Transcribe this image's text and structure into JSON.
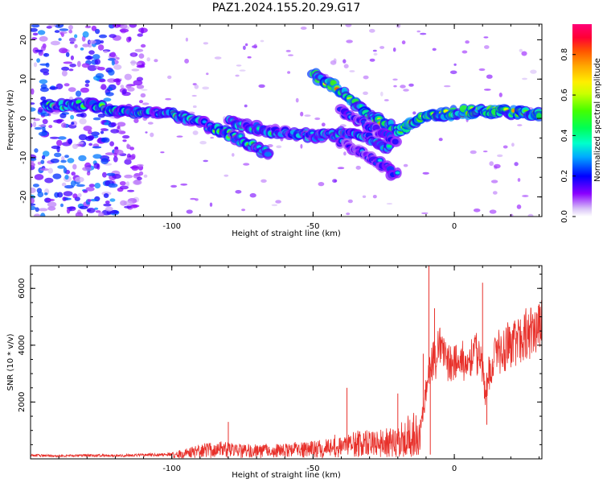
{
  "figure": {
    "title": "PAZ1.2024.155.20.29.G17"
  },
  "chart_data": [
    {
      "type": "heatmap",
      "title": "PAZ1.2024.155.20.29.G17",
      "xlabel": "Height of straight line (km)",
      "ylabel": "Frequency (Hz)",
      "xlim": [
        -150,
        31
      ],
      "ylim": [
        -25,
        24
      ],
      "x_ticks": [
        "-100",
        "-50",
        "0"
      ],
      "y_ticks": [
        "-20",
        "-10",
        "0",
        "10",
        "20"
      ],
      "colorbar": {
        "label": "Normalized spectral amplitude",
        "range": [
          0,
          0.95
        ],
        "ticks": [
          "0.0",
          "0.2",
          "0.4",
          "0.6",
          "0.8"
        ],
        "colormap": "gist_rainbow_r"
      },
      "ridges": [
        {
          "points": [
            [
              -145,
              3
            ],
            [
              -130,
              3.5
            ],
            [
              -115,
              1.5
            ],
            [
              -100,
              1
            ],
            [
              -90,
              -1
            ],
            [
              -80,
              -4
            ],
            [
              -70,
              -7.5
            ],
            [
              -65,
              -9
            ]
          ],
          "amplitude": 0.55
        },
        {
          "points": [
            [
              -80,
              -1
            ],
            [
              -70,
              -2.5
            ],
            [
              -60,
              -3.5
            ],
            [
              -50,
              -4.5
            ],
            [
              -40,
              -4
            ],
            [
              -32,
              -4.5
            ],
            [
              -27,
              -6
            ],
            [
              -22,
              -8
            ]
          ],
          "amplitude": 0.5
        },
        {
          "points": [
            [
              -50,
              11
            ],
            [
              -42,
              8
            ],
            [
              -35,
              4
            ],
            [
              -30,
              1
            ],
            [
              -25,
              -1
            ],
            [
              -20,
              -3
            ],
            [
              -15,
              -1
            ],
            [
              -10,
              0.5
            ],
            [
              0,
              1.5
            ],
            [
              10,
              2
            ],
            [
              20,
              1.5
            ],
            [
              31,
              1
            ]
          ],
          "amplitude": 0.8
        },
        {
          "points": [
            [
              -40,
              -6
            ],
            [
              -35,
              -8
            ],
            [
              -30,
              -10
            ],
            [
              -25,
              -12
            ],
            [
              -20,
              -15
            ]
          ],
          "amplitude": 0.35
        },
        {
          "points": [
            [
              -40,
              2
            ],
            [
              -30,
              -2
            ],
            [
              -25,
              -4
            ],
            [
              -20,
              -6
            ]
          ],
          "amplitude": 0.35
        }
      ],
      "noise_region": {
        "x": [
          -150,
          -110
        ],
        "y": [
          -25,
          24
        ],
        "amplitude_max": 0.3
      }
    },
    {
      "type": "line",
      "title": "",
      "xlabel": "Height of straight line (km)",
      "ylabel": "SNR (10 * v/v)",
      "xlim": [
        -150,
        31
      ],
      "ylim": [
        0,
        6800
      ],
      "x_ticks": [
        "-100",
        "-50",
        "0"
      ],
      "y_ticks": [
        "2000",
        "4000",
        "6000"
      ],
      "series": [
        {
          "color": "#e8302a",
          "envelope": [
            {
              "x": -150,
              "y": 170
            },
            {
              "x": -140,
              "y": 140
            },
            {
              "x": -130,
              "y": 170
            },
            {
              "x": -120,
              "y": 160
            },
            {
              "x": -110,
              "y": 180
            },
            {
              "x": -100,
              "y": 220
            },
            {
              "x": -95,
              "y": 380
            },
            {
              "x": -90,
              "y": 500
            },
            {
              "x": -85,
              "y": 650
            },
            {
              "x": -80,
              "y": 600
            },
            {
              "x": -75,
              "y": 500
            },
            {
              "x": -70,
              "y": 520
            },
            {
              "x": -65,
              "y": 560
            },
            {
              "x": -60,
              "y": 520
            },
            {
              "x": -55,
              "y": 620
            },
            {
              "x": -50,
              "y": 680
            },
            {
              "x": -45,
              "y": 800
            },
            {
              "x": -40,
              "y": 900
            },
            {
              "x": -35,
              "y": 1000
            },
            {
              "x": -30,
              "y": 1050
            },
            {
              "x": -25,
              "y": 1100
            },
            {
              "x": -20,
              "y": 1050
            },
            {
              "x": -15,
              "y": 1000
            },
            {
              "x": -12,
              "y": 1400
            },
            {
              "x": -10,
              "y": 2900
            },
            {
              "x": -9,
              "y": 4000
            },
            {
              "x": -7,
              "y": 4200
            },
            {
              "x": -5,
              "y": 4700
            },
            {
              "x": -2,
              "y": 4100
            },
            {
              "x": 0,
              "y": 4050
            },
            {
              "x": 5,
              "y": 4300
            },
            {
              "x": 8,
              "y": 4500
            },
            {
              "x": 10,
              "y": 3800
            },
            {
              "x": 11,
              "y": 2500
            },
            {
              "x": 12,
              "y": 3600
            },
            {
              "x": 15,
              "y": 4500
            },
            {
              "x": 20,
              "y": 4900
            },
            {
              "x": 25,
              "y": 5300
            },
            {
              "x": 31,
              "y": 5600
            }
          ],
          "spikes": [
            {
              "x": -9,
              "y": 6800
            },
            {
              "x": 10,
              "y": 6200
            },
            {
              "x": -7,
              "y": 5300
            },
            {
              "x": 11.5,
              "y": 1200
            },
            {
              "x": -8.5,
              "y": 150
            },
            {
              "x": -11,
              "y": 3700
            },
            {
              "x": -38,
              "y": 2500
            },
            {
              "x": -20,
              "y": 2300
            },
            {
              "x": -80,
              "y": 1300
            }
          ]
        }
      ]
    }
  ]
}
